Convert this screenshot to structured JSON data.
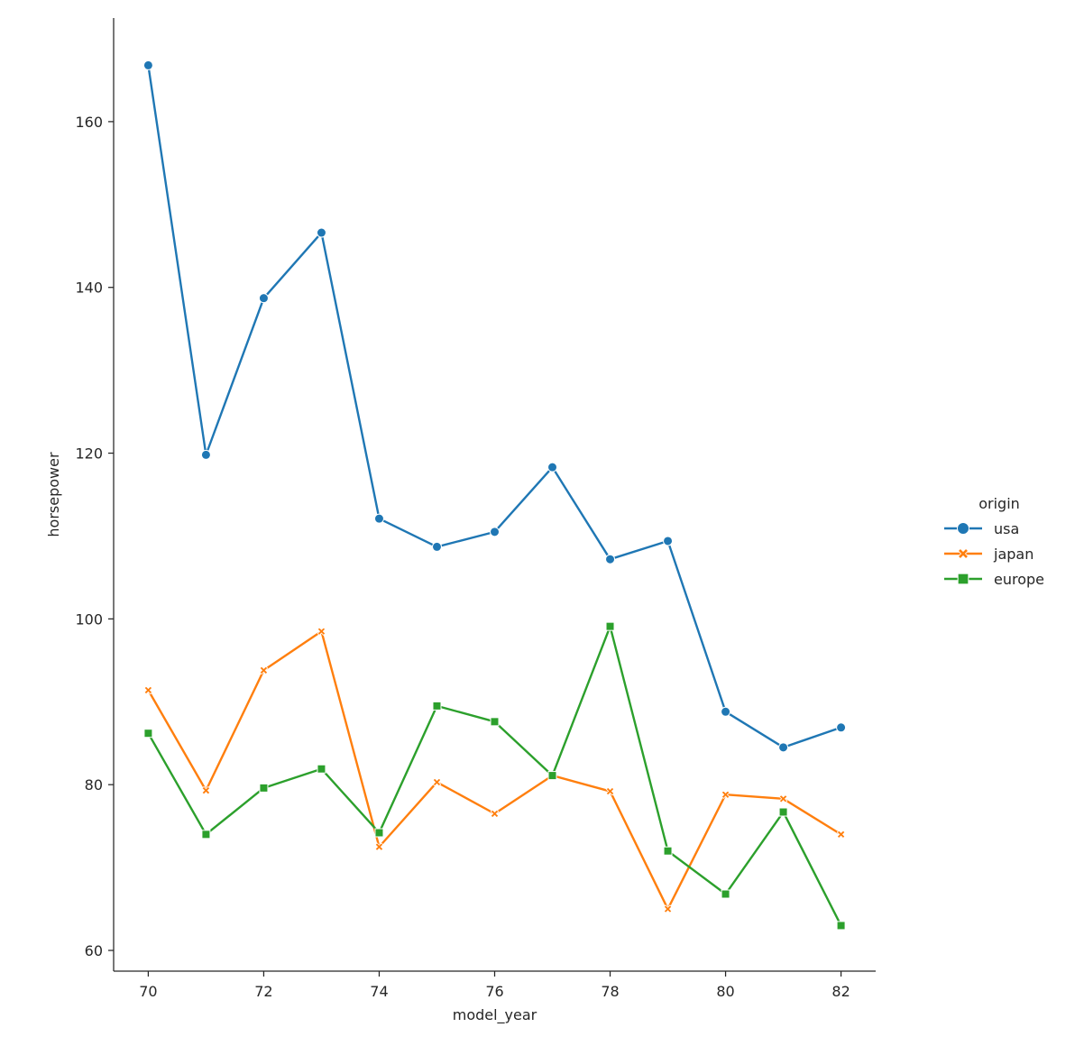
{
  "chart_data": {
    "type": "line",
    "xlabel": "model_year",
    "ylabel": "horsepower",
    "xlim": [
      69.4,
      82.6
    ],
    "ylim": [
      57.5,
      172.5
    ],
    "xticks": [
      70,
      72,
      74,
      76,
      78,
      80,
      82
    ],
    "yticks": [
      60,
      80,
      100,
      120,
      140,
      160
    ],
    "grid": false,
    "legend": {
      "title": "origin",
      "placement": "right"
    },
    "x": [
      70,
      71,
      72,
      73,
      74,
      75,
      76,
      77,
      78,
      79,
      80,
      81,
      82
    ],
    "series": [
      {
        "name": "usa",
        "color": "#1f77b4",
        "marker": "circle",
        "values": [
          166.8,
          119.8,
          138.7,
          146.6,
          112.1,
          108.7,
          110.5,
          118.3,
          107.2,
          109.4,
          88.8,
          84.5,
          86.9
        ]
      },
      {
        "name": "japan",
        "color": "#ff7f0e",
        "marker": "x",
        "values": [
          91.4,
          79.3,
          93.8,
          98.5,
          72.5,
          80.3,
          76.5,
          81.1,
          79.2,
          65.0,
          78.8,
          78.3,
          74.0
        ]
      },
      {
        "name": "europe",
        "color": "#2ca02c",
        "marker": "square",
        "values": [
          86.2,
          74.0,
          79.6,
          81.9,
          74.2,
          89.5,
          87.6,
          81.1,
          99.1,
          72.0,
          66.8,
          76.7,
          63.0
        ]
      }
    ]
  }
}
